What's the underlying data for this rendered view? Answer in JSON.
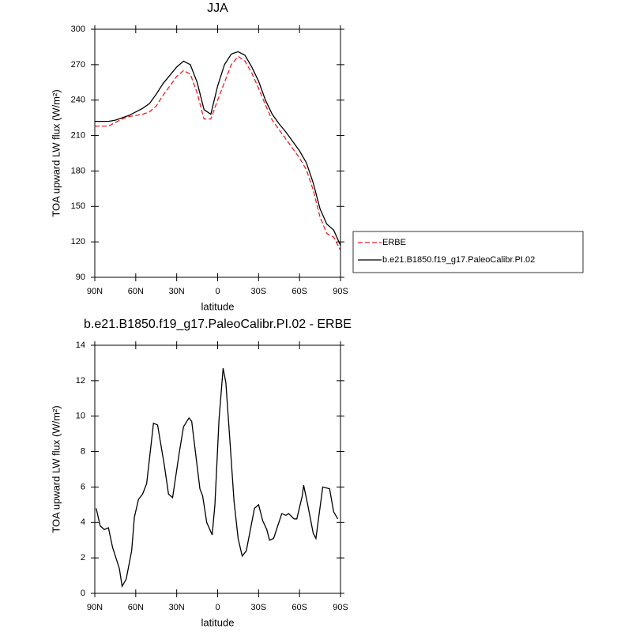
{
  "chart_data": [
    {
      "type": "line",
      "title": "JJA",
      "xlabel": "latitude",
      "ylabel": "TOA upward LW flux (W/m²)",
      "x": [
        90,
        85,
        80,
        75,
        70,
        65,
        60,
        55,
        50,
        45,
        40,
        35,
        30,
        25,
        20,
        15,
        10,
        5,
        0,
        -5,
        -10,
        -15,
        -20,
        -25,
        -30,
        -35,
        -40,
        -45,
        -50,
        -55,
        -60,
        -65,
        -70,
        -75,
        -80,
        -85,
        -90
      ],
      "series": [
        {
          "name": "ERBE",
          "color": "#e8212a",
          "style": "dashed",
          "values": [
            218,
            218,
            218,
            221,
            224,
            226,
            227,
            228,
            230,
            235,
            244,
            252,
            260,
            265,
            262,
            246,
            224,
            224,
            240,
            255,
            270,
            277,
            273,
            263,
            250,
            236,
            223,
            215,
            207,
            199,
            191,
            181,
            164,
            141,
            127,
            124,
            113
          ]
        },
        {
          "name": "b.e21.B1850.f19_g17.PaleoCalibr.PI.02",
          "color": "#000000",
          "style": "solid",
          "values": [
            222,
            222,
            222,
            223,
            225,
            227,
            230,
            233,
            237,
            245,
            254,
            261,
            268,
            273,
            270,
            255,
            232,
            228,
            252,
            270,
            279,
            281,
            278,
            268,
            256,
            240,
            228,
            220,
            213,
            205,
            197,
            187,
            170,
            148,
            135,
            130,
            117
          ]
        }
      ],
      "xlim": [
        90,
        -90
      ],
      "xticks": [
        {
          "value": 90,
          "label": "90N"
        },
        {
          "value": 60,
          "label": "60N"
        },
        {
          "value": 30,
          "label": "30N"
        },
        0,
        {
          "value": -30,
          "label": "30S"
        },
        {
          "value": -60,
          "label": "60S"
        },
        {
          "value": -90,
          "label": "90S"
        }
      ],
      "ylim": [
        90,
        300
      ],
      "yticks": [
        90,
        120,
        150,
        180,
        210,
        240,
        270,
        300
      ],
      "legend": "right"
    },
    {
      "type": "line",
      "title": "b.e21.B1850.f19_g17.PaleoCalibr.PI.02 - ERBE",
      "xlabel": "latitude",
      "ylabel": "TOA upward LW flux (W/m²)",
      "x": [
        89,
        86,
        83,
        80,
        77,
        72,
        70,
        67,
        63,
        61,
        58,
        55,
        52,
        47,
        44,
        39,
        36,
        33,
        28,
        25,
        21,
        19,
        13,
        11,
        8,
        4,
        2,
        -1,
        -4,
        -6,
        -9,
        -12,
        -15,
        -18,
        -21,
        -25,
        -27,
        -30,
        -33,
        -36,
        -38,
        -41,
        -47,
        -50,
        -52,
        -56,
        -58,
        -62,
        -63,
        -66,
        -70,
        -72,
        -77,
        -82,
        -85,
        -88
      ],
      "series": [
        {
          "color": "#000000",
          "style": "solid",
          "values": [
            4.8,
            3.8,
            3.6,
            3.7,
            2.6,
            1.4,
            0.4,
            0.8,
            2.4,
            4.3,
            5.3,
            5.6,
            6.2,
            9.6,
            9.5,
            7.2,
            5.6,
            5.4,
            8.0,
            9.4,
            9.9,
            9.7,
            5.9,
            5.5,
            4.0,
            3.3,
            5.0,
            9.8,
            12.7,
            11.9,
            8.6,
            5.2,
            3.1,
            2.1,
            2.4,
            4.0,
            4.8,
            5.0,
            4.1,
            3.6,
            3.0,
            3.1,
            4.5,
            4.4,
            4.5,
            4.2,
            4.2,
            5.5,
            6.1,
            5.0,
            3.4,
            3.1,
            6.0,
            5.9,
            4.6,
            4.2
          ]
        }
      ],
      "xlim": [
        90,
        -90
      ],
      "xticks": [
        {
          "value": 90,
          "label": "90N"
        },
        {
          "value": 60,
          "label": "60N"
        },
        {
          "value": 30,
          "label": "30N"
        },
        0,
        {
          "value": -30,
          "label": "30S"
        },
        {
          "value": -60,
          "label": "60S"
        },
        {
          "value": -90,
          "label": "90S"
        }
      ],
      "ylim": [
        0,
        14
      ],
      "yticks": [
        0,
        2,
        4,
        6,
        8,
        10,
        12,
        14
      ]
    }
  ]
}
